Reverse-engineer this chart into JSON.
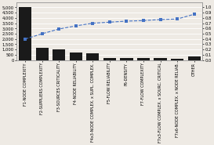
{
  "categories": [
    "F1-NODE COMPLEXITY",
    "F2-SUPPLIERS COMPLEXITY",
    "F3-SOURCES CRITICALITY",
    "F4-NODE RELIABILITY",
    "F4x3-NODE COMPLEX. x SUPL. COMPLEX.",
    "F5-FLOW RELIABILITY",
    "F6-DENSITY",
    "F7-FLOW COMPLEXITY",
    "F7x3-FLOW COMPLEX. x SOURC. CRITICAL",
    "F7x6-NODE COMPLEX. x NODE RELIAB.",
    "OTHER"
  ],
  "values": [
    5000,
    1200,
    1050,
    700,
    650,
    230,
    210,
    195,
    175,
    110,
    380
  ],
  "cumulative_pct": [
    0.4,
    0.5,
    0.59,
    0.65,
    0.7,
    0.72,
    0.74,
    0.75,
    0.77,
    0.78,
    0.87
  ],
  "bar_color": "#1a1a1a",
  "line_color": "#4472c4",
  "marker_style": "s",
  "left_ylim": [
    0,
    5500
  ],
  "right_ylim": [
    0,
    1.1
  ],
  "left_yticks": [
    0,
    500,
    1000,
    1500,
    2000,
    2500,
    3000,
    3500,
    4000,
    4500,
    5000
  ],
  "right_yticks": [
    0.0,
    0.1,
    0.2,
    0.3,
    0.4,
    0.5,
    0.6,
    0.7,
    0.8,
    0.9,
    1.0
  ],
  "background_color": "#eeeae4",
  "grid_color": "#ffffff",
  "tick_fontsize": 3.8,
  "xlabel_fontsize": 3.5,
  "line_width": 0.8,
  "marker_size": 2.5
}
